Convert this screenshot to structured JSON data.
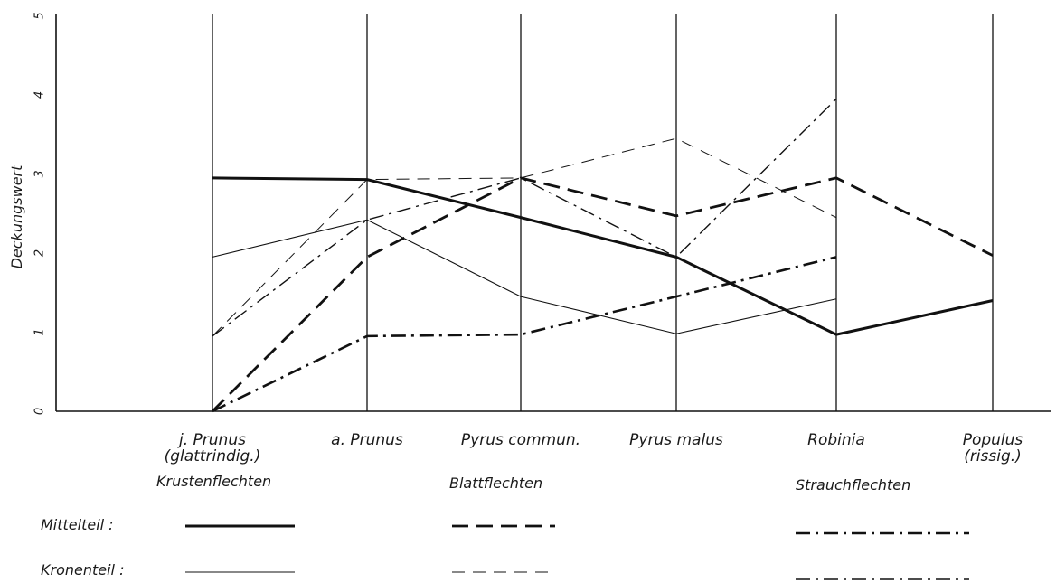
{
  "chart_data": {
    "type": "line",
    "ylabel": "Deckungswert",
    "ylim": [
      0,
      5
    ],
    "yticks": [
      "0",
      "1",
      "2",
      "3",
      "4",
      "5"
    ],
    "categories": [
      [
        "j. Prunus",
        "(glattrindig.)"
      ],
      [
        "a. Prunus"
      ],
      [
        "Pyrus commun."
      ],
      [
        "Pyrus malus"
      ],
      [
        "Robinia"
      ],
      [
        "Populus",
        "(rissig.)"
      ]
    ],
    "series": [
      {
        "group": "Krustenflechten",
        "part": "Mittelteil",
        "values": [
          2.95,
          2.93,
          2.45,
          1.95,
          0.97,
          1.4
        ]
      },
      {
        "group": "Krustenflechten",
        "part": "Kronenteil",
        "values": [
          1.95,
          2.42,
          1.45,
          0.98,
          1.42,
          null
        ]
      },
      {
        "group": "Blattflechten",
        "part": "Mittelteil",
        "values": [
          0.0,
          1.95,
          2.95,
          2.47,
          2.95,
          1.97
        ]
      },
      {
        "group": "Blattflechten",
        "part": "Kronenteil",
        "values": [
          0.95,
          2.93,
          2.95,
          3.45,
          2.45,
          null
        ]
      },
      {
        "group": "Strauchflechten",
        "part": "Mittelteil",
        "values": [
          0.0,
          0.95,
          0.97,
          1.45,
          1.95,
          null
        ]
      },
      {
        "group": "Strauchflechten",
        "part": "Kronenteil",
        "values": [
          0.95,
          2.42,
          2.95,
          1.95,
          3.95,
          null
        ]
      }
    ],
    "legend": {
      "groups": [
        "Krustenflechten",
        "Blattflechten",
        "Strauchflechten"
      ],
      "rows": [
        "Mittelteil :",
        "Kronenteil :"
      ]
    },
    "grid": "vertical lines at categories"
  }
}
